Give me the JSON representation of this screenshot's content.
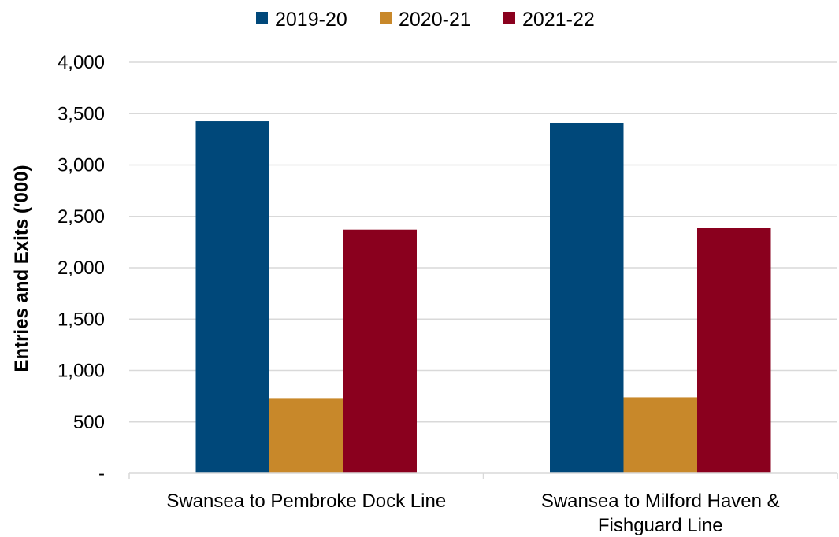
{
  "chart_data": {
    "type": "bar",
    "ylabel": "Entries and Exits ('000)",
    "xlabel": "",
    "ylim": [
      0,
      4000
    ],
    "yticks": [
      0,
      500,
      1000,
      1500,
      2000,
      2500,
      3000,
      3500,
      4000
    ],
    "ytick_labels": [
      "-",
      "500",
      "1,000",
      "1,500",
      "2,000",
      "2,500",
      "3,000",
      "3,500",
      "4,000"
    ],
    "grid": true,
    "legend_position": "top",
    "categories": [
      [
        "Swansea to Pembroke Dock Line"
      ],
      [
        "Swansea to Milford Haven &",
        "Fishguard Line"
      ]
    ],
    "series": [
      {
        "name": "2019-20",
        "color": "#00487a",
        "values": [
          3425,
          3410
        ]
      },
      {
        "name": "2020-21",
        "color": "#c8882a",
        "values": [
          725,
          740
        ]
      },
      {
        "name": "2021-22",
        "color": "#8a001e",
        "values": [
          2370,
          2385
        ]
      }
    ]
  }
}
